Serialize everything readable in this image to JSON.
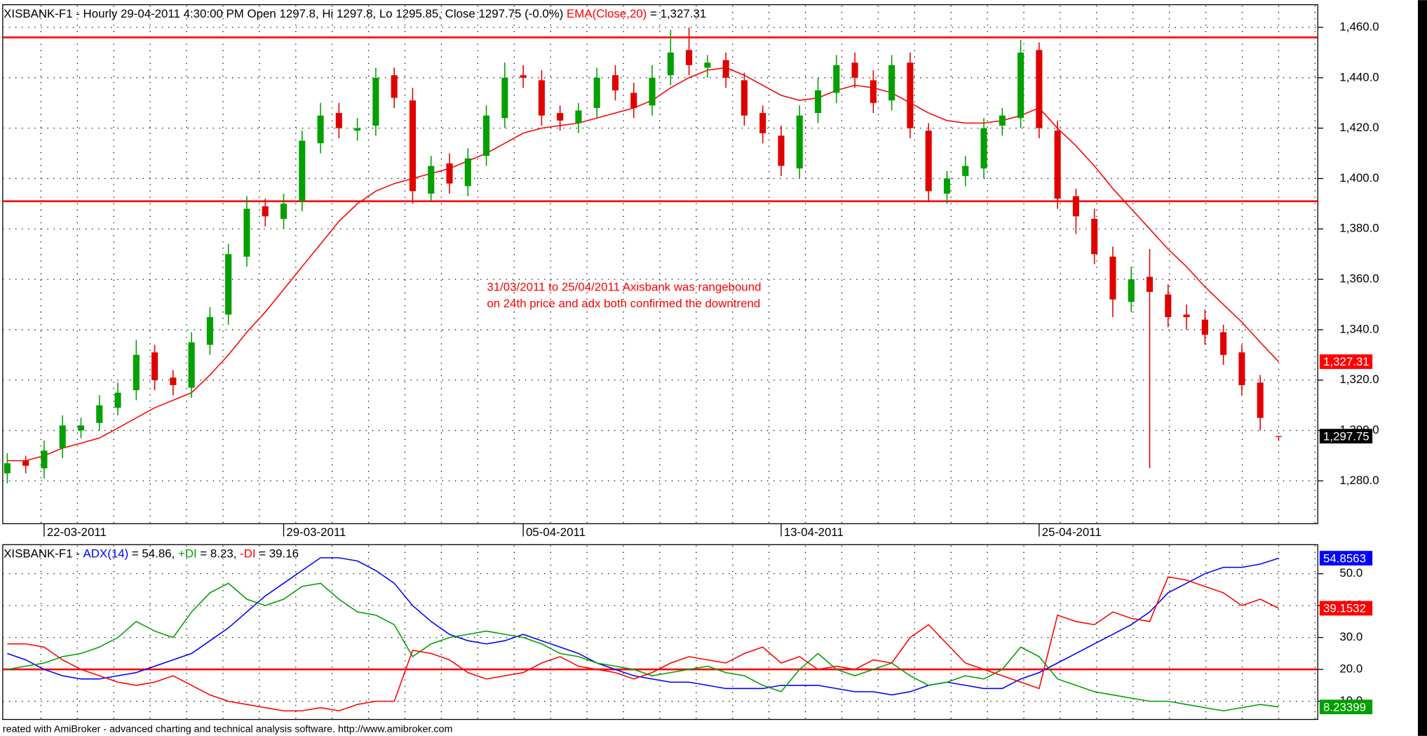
{
  "chart_data": [
    {
      "type": "candlestick",
      "title_prefix": "XISBANK-F1 - Hourly 29-04-2011 4:30:00 PM Open 1297.8, Hi 1297.8, Lo 1295.85, Close 1297.75 (-0.0%) ",
      "categories": [
        null,
        null,
        "22-03-2011",
        null,
        null,
        null,
        null,
        null,
        null,
        null,
        null,
        null,
        null,
        null,
        null,
        "29-03-2011",
        null,
        null,
        null,
        null,
        null,
        null,
        null,
        null,
        null,
        null,
        null,
        null,
        "05-04-2011",
        null,
        null,
        null,
        null,
        null,
        null,
        null,
        null,
        null,
        null,
        null,
        null,
        null,
        "13-04-2011",
        null,
        null,
        null,
        null,
        null,
        null,
        null,
        null,
        null,
        null,
        null,
        null,
        null,
        "25-04-2011",
        null,
        null,
        null,
        null,
        null,
        null,
        null,
        null,
        null,
        null,
        null,
        null,
        null
      ],
      "open": [
        1283,
        1288,
        1285,
        1293,
        1300,
        1303,
        1309,
        1316,
        1331,
        1321,
        1317,
        1334,
        1346,
        1369,
        1389,
        1384,
        1391,
        1414,
        1426,
        1419,
        1421,
        1441,
        1431,
        1394,
        1406,
        1397,
        1409,
        1424,
        1441,
        1439,
        1426,
        1422,
        1428,
        1441,
        1434,
        1429,
        1441,
        1451,
        1444,
        1447,
        1439,
        1426,
        1417,
        1404,
        1426,
        1434,
        1446,
        1439,
        1431,
        1446,
        1419,
        1394,
        1401,
        1404,
        1421,
        1424,
        1451,
        1419,
        1393,
        1384,
        1369,
        1351,
        1361,
        1354,
        1346,
        1344,
        1339,
        1331,
        1319,
        1297.8
      ],
      "high": [
        1291,
        1290,
        1296,
        1306,
        1305,
        1314,
        1319,
        1336,
        1334,
        1324,
        1339,
        1349,
        1374,
        1393,
        1392,
        1394,
        1419,
        1430,
        1430,
        1424,
        1444,
        1444,
        1436,
        1409,
        1410,
        1412,
        1429,
        1446,
        1445,
        1443,
        1429,
        1430,
        1444,
        1445,
        1438,
        1445,
        1459,
        1460,
        1449,
        1450,
        1442,
        1429,
        1421,
        1429,
        1440,
        1449,
        1450,
        1443,
        1449,
        1450,
        1422,
        1403,
        1409,
        1424,
        1428,
        1455,
        1454,
        1423,
        1396,
        1388,
        1373,
        1365,
        1372,
        1358,
        1350,
        1348,
        1342,
        1334,
        1322,
        1297.8
      ],
      "low": [
        1279,
        1283,
        1281,
        1289,
        1297,
        1300,
        1306,
        1312,
        1316,
        1314,
        1313,
        1330,
        1342,
        1365,
        1381,
        1380,
        1387,
        1410,
        1416,
        1415,
        1417,
        1428,
        1390,
        1391,
        1394,
        1393,
        1405,
        1420,
        1436,
        1421,
        1419,
        1418,
        1424,
        1431,
        1424,
        1425,
        1437,
        1441,
        1440,
        1436,
        1421,
        1414,
        1401,
        1400,
        1422,
        1430,
        1436,
        1426,
        1427,
        1416,
        1391,
        1390,
        1397,
        1400,
        1417,
        1420,
        1416,
        1388,
        1378,
        1366,
        1345,
        1347,
        1285,
        1341,
        1340,
        1334,
        1326,
        1314,
        1300,
        1295.85
      ],
      "close": [
        1287,
        1286,
        1292,
        1302,
        1302,
        1310,
        1315,
        1330,
        1320,
        1318,
        1335,
        1345,
        1370,
        1388,
        1385,
        1390,
        1415,
        1425,
        1420,
        1420,
        1440,
        1432,
        1395,
        1405,
        1398,
        1408,
        1425,
        1440,
        1440,
        1425,
        1423,
        1427,
        1440,
        1435,
        1428,
        1440,
        1450,
        1445,
        1446,
        1440,
        1425,
        1418,
        1405,
        1425,
        1435,
        1445,
        1440,
        1430,
        1445,
        1420,
        1395,
        1400,
        1405,
        1420,
        1425,
        1450,
        1420,
        1392,
        1385,
        1370,
        1352,
        1360,
        1355,
        1345,
        1345,
        1338,
        1330,
        1318,
        1305,
        1297.75
      ],
      "up_color": "#00a000",
      "down_color": "#e00000",
      "close_label": "1,297.75",
      "ema": {
        "name": "EMA(Close,20)",
        "color": "#ff0000",
        "header_value": " = 1,327.31",
        "last_label": "1,327.31",
        "values": [
          1288,
          1288,
          1290,
          1293,
          1295,
          1297,
          1301,
          1305,
          1309,
          1312,
          1315,
          1322,
          1330,
          1339,
          1347,
          1356,
          1365,
          1374,
          1383,
          1390,
          1395,
          1398,
          1400,
          1402,
          1404,
          1407,
          1410,
          1414,
          1418,
          1420,
          1421,
          1422,
          1424,
          1426,
          1428,
          1431,
          1436,
          1440,
          1443,
          1444,
          1441,
          1437,
          1433,
          1431,
          1432,
          1435,
          1437,
          1436,
          1434,
          1430,
          1426,
          1423,
          1422,
          1422,
          1423,
          1425,
          1428,
          1420,
          1413,
          1405,
          1396,
          1388,
          1380,
          1372,
          1365,
          1357,
          1350,
          1343,
          1335,
          1327.31
        ]
      },
      "ylim": [
        1263,
        1469
      ],
      "yticks": [
        {
          "value": 1280,
          "label": "1,280.0"
        },
        {
          "value": 1300,
          "label": "1,300.0"
        },
        {
          "value": 1320,
          "label": "1,320.0"
        },
        {
          "value": 1340,
          "label": "1,340.0"
        },
        {
          "value": 1360,
          "label": "1,360.0"
        },
        {
          "value": 1380,
          "label": "1,380.0"
        },
        {
          "value": 1400,
          "label": "1,400.0"
        },
        {
          "value": 1420,
          "label": "1,420.0"
        },
        {
          "value": 1440,
          "label": "1,440.0"
        },
        {
          "value": 1460,
          "label": "1,460.0"
        }
      ],
      "hlines": [
        1456,
        1391
      ],
      "hline_color": "#ff0000",
      "annotation": [
        "31/03/2011 to 25/04/2011 Axisbank was rangebound",
        "on 24th price and adx both confirmed the downtrend"
      ],
      "annotation_color": "#ff0000",
      "grid": true
    },
    {
      "type": "line",
      "title_prefix": "XISBANK-F1 - ",
      "series": [
        {
          "name": "ADX(14)",
          "color": "#0000ff",
          "header_value": " = 54.86, ",
          "last_label": "54.8563",
          "values": [
            25,
            23,
            20,
            18,
            17,
            17,
            18,
            19,
            21,
            23,
            25,
            29,
            33,
            38,
            43,
            47,
            51,
            55,
            55,
            54,
            51,
            47,
            40,
            35,
            31,
            29,
            28,
            29,
            31,
            29,
            27,
            25,
            22,
            20,
            18,
            17,
            16,
            16,
            15,
            14,
            14,
            14,
            15,
            15,
            15,
            14,
            13,
            13,
            12,
            13,
            15,
            16,
            15,
            14,
            14,
            17,
            19,
            22,
            25,
            28,
            31,
            34,
            38,
            44,
            47,
            50,
            52,
            52,
            53,
            54.86
          ]
        },
        {
          "name": "+DI",
          "color": "#00a000",
          "header_value": " = 8.23, ",
          "last_label": "8.23399",
          "values": [
            20,
            21,
            22,
            24,
            25,
            27,
            30,
            35,
            32,
            30,
            38,
            44,
            47,
            42,
            40,
            42,
            46,
            47,
            42,
            38,
            37,
            34,
            24,
            28,
            30,
            31,
            32,
            31,
            30,
            28,
            25,
            24,
            22,
            21,
            20,
            18,
            19,
            20,
            21,
            19,
            18,
            15,
            13,
            20,
            25,
            20,
            18,
            20,
            22,
            18,
            15,
            16,
            18,
            17,
            20,
            27,
            24,
            17,
            15,
            13,
            12,
            11,
            10,
            10,
            9,
            8,
            7,
            8,
            9,
            8.23
          ]
        },
        {
          "name": "-DI",
          "color": "#ff0000",
          "header_value": " = 39.16",
          "last_label": "39.1532",
          "values": [
            28,
            28,
            27,
            23,
            20,
            18,
            16,
            15,
            16,
            18,
            15,
            12,
            10,
            9,
            8,
            7,
            7,
            8,
            7,
            9,
            10,
            10,
            26,
            25,
            23,
            19,
            17,
            18,
            19,
            22,
            24,
            21,
            20,
            19,
            17,
            19,
            22,
            24,
            23,
            22,
            25,
            27,
            22,
            24,
            20,
            21,
            20,
            23,
            22,
            30,
            34,
            28,
            22,
            20,
            18,
            16,
            14,
            37,
            35,
            34,
            38,
            36,
            35,
            49,
            48,
            46,
            44,
            40,
            42,
            39.16
          ]
        }
      ],
      "ylim": [
        4.3,
        59.1
      ],
      "yticks": [
        {
          "value": 10,
          "label": "10.0"
        },
        {
          "value": 20,
          "label": "20.0"
        },
        {
          "value": 30,
          "label": "30.0"
        },
        {
          "value": 40,
          "label": "40.0"
        },
        {
          "value": 50,
          "label": "50.0"
        }
      ],
      "hlines": [
        20
      ],
      "hline_color": "#ff0000",
      "grid": true
    }
  ],
  "footer": "reated with AmiBroker - advanced charting and technical analysis software. http://www.amibroker.com"
}
